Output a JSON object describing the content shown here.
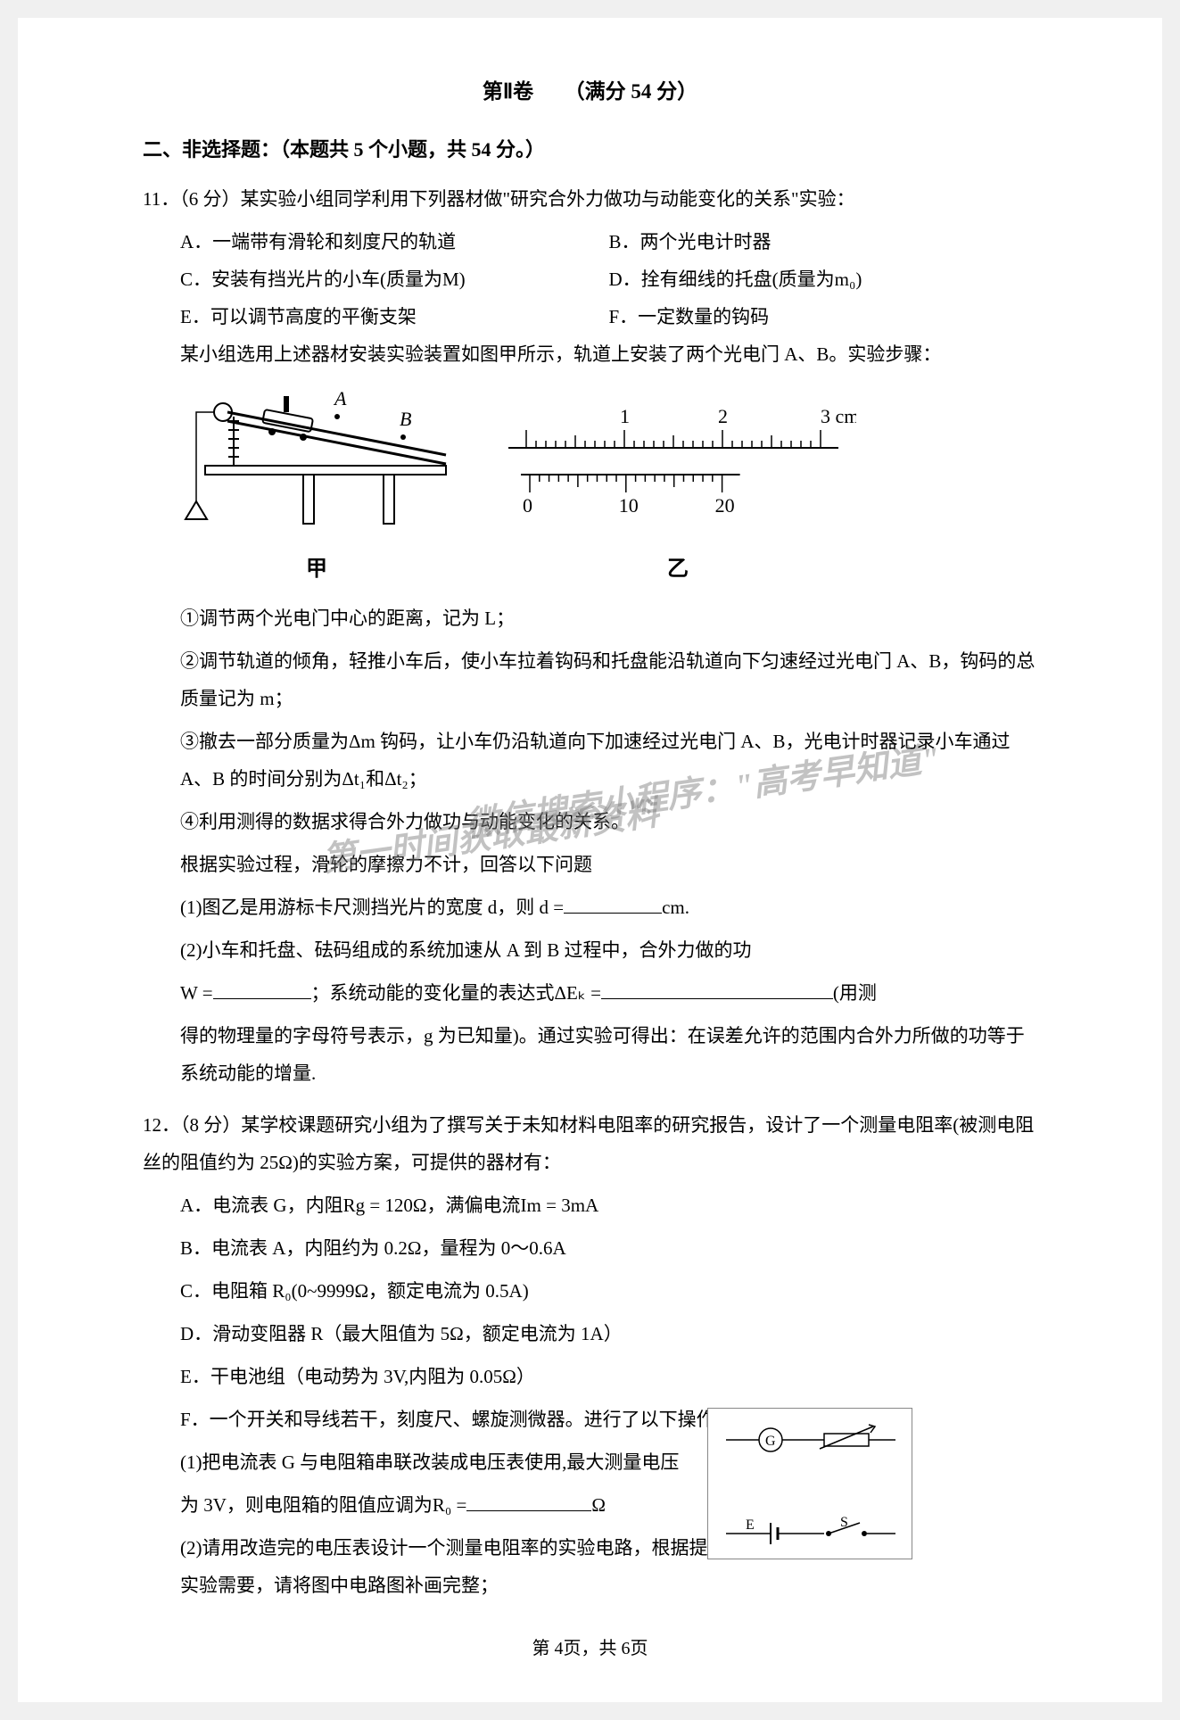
{
  "title": "第Ⅱ卷　　（满分 54 分）",
  "section_heading": "二、非选择题：（本题共 5 个小题，共 54 分。）",
  "q11": {
    "intro": "11．（6 分）某实验小组同学利用下列器材做\"研究合外力做功与动能变化的关系\"实验：",
    "item_a": "A．一端带有滑轮和刻度尺的轨道",
    "item_b": "B．两个光电计时器",
    "item_c": "C．安装有挡光片的小车(质量为M)",
    "item_d": "D．拴有细线的托盘(质量为m₀)",
    "item_e": "E．可以调节高度的平衡支架",
    "item_f": "F．一定数量的钩码",
    "setup": "某小组选用上述器材安装实验装置如图甲所示，轨道上安装了两个光电门 A、B。实验步骤：",
    "fig_jia_label": "甲",
    "fig_yi_label": "乙",
    "step1": "①调节两个光电门中心的距离，记为 L；",
    "step2": "②调节轨道的倾角，轻推小车后，使小车拉着钩码和托盘能沿轨道向下匀速经过光电门 A、B，钩码的总质量记为 m；",
    "step3": "③撤去一部分质量为Δm 钩码，让小车仍沿轨道向下加速经过光电门 A、B，光电计时器记录小车通过 A、B 的时间分别为Δt₁和Δt₂；",
    "step4": "④利用测得的数据求得合外力做功与动能变化的关系。",
    "step5": "根据实验过程，滑轮的摩擦力不计，回答以下问题",
    "q1_text_a": "(1)图乙是用游标卡尺测挡光片的宽度 d，则 d =",
    "q1_text_b": "cm.",
    "q2_text_a": "(2)小车和托盘、砝码组成的系统加速从 A 到 B 过程中，合外力做的功",
    "q2_text_b": "W =",
    "q2_text_c": "；系统动能的变化量的表达式ΔEₖ =",
    "q2_text_d": "(用测",
    "q2_text_e": "得的物理量的字母符号表示，g 为已知量)。通过实验可得出：在误差允许的范围内合外力所做的功等于系统动能的增量."
  },
  "q12": {
    "intro": "12．（8 分）某学校课题研究小组为了撰写关于未知材料电阻率的研究报告，设计了一个测量电阻率(被测电阻丝的阻值约为 25Ω)的实验方案，可提供的器材有：",
    "item_a": "A．电流表 G，内阻Rg = 120Ω，满偏电流Im = 3mA",
    "item_b": "B．电流表 A，内阻约为 0.2Ω，量程为 0～0.6A",
    "item_c": "C．电阻箱 R₀(0~9999Ω，额定电流为 0.5A)",
    "item_d": "D．滑动变阻器 R（最大阻值为 5Ω，额定电流为 1A）",
    "item_e": "E．干电池组（电动势为 3V,内阻为 0.05Ω）",
    "item_f": "F．一个开关和导线若干，刻度尺、螺旋测微器。进行了以下操作：",
    "q1_text_a": "(1)把电流表 G 与电阻箱串联改装成电压表使用,最大测量电压",
    "q1_text_b": "为 3V，则电阻箱的阻值应调为R₀ =",
    "q1_text_c": "Ω",
    "q2_text": "(2)请用改造完的电压表设计一个测量电阻率的实验电路，根据提供的器材和实验需要，请将图中电路图补画完整；"
  },
  "footer": "第 4页，共 6页",
  "ruler": {
    "top_labels": [
      "1",
      "2",
      "3 cm"
    ],
    "bottom_labels": [
      "0",
      "10",
      "20"
    ]
  },
  "watermark1": "微信搜索小程序：\"高考早知道\"",
  "watermark2": "第一时间获取最新资料"
}
